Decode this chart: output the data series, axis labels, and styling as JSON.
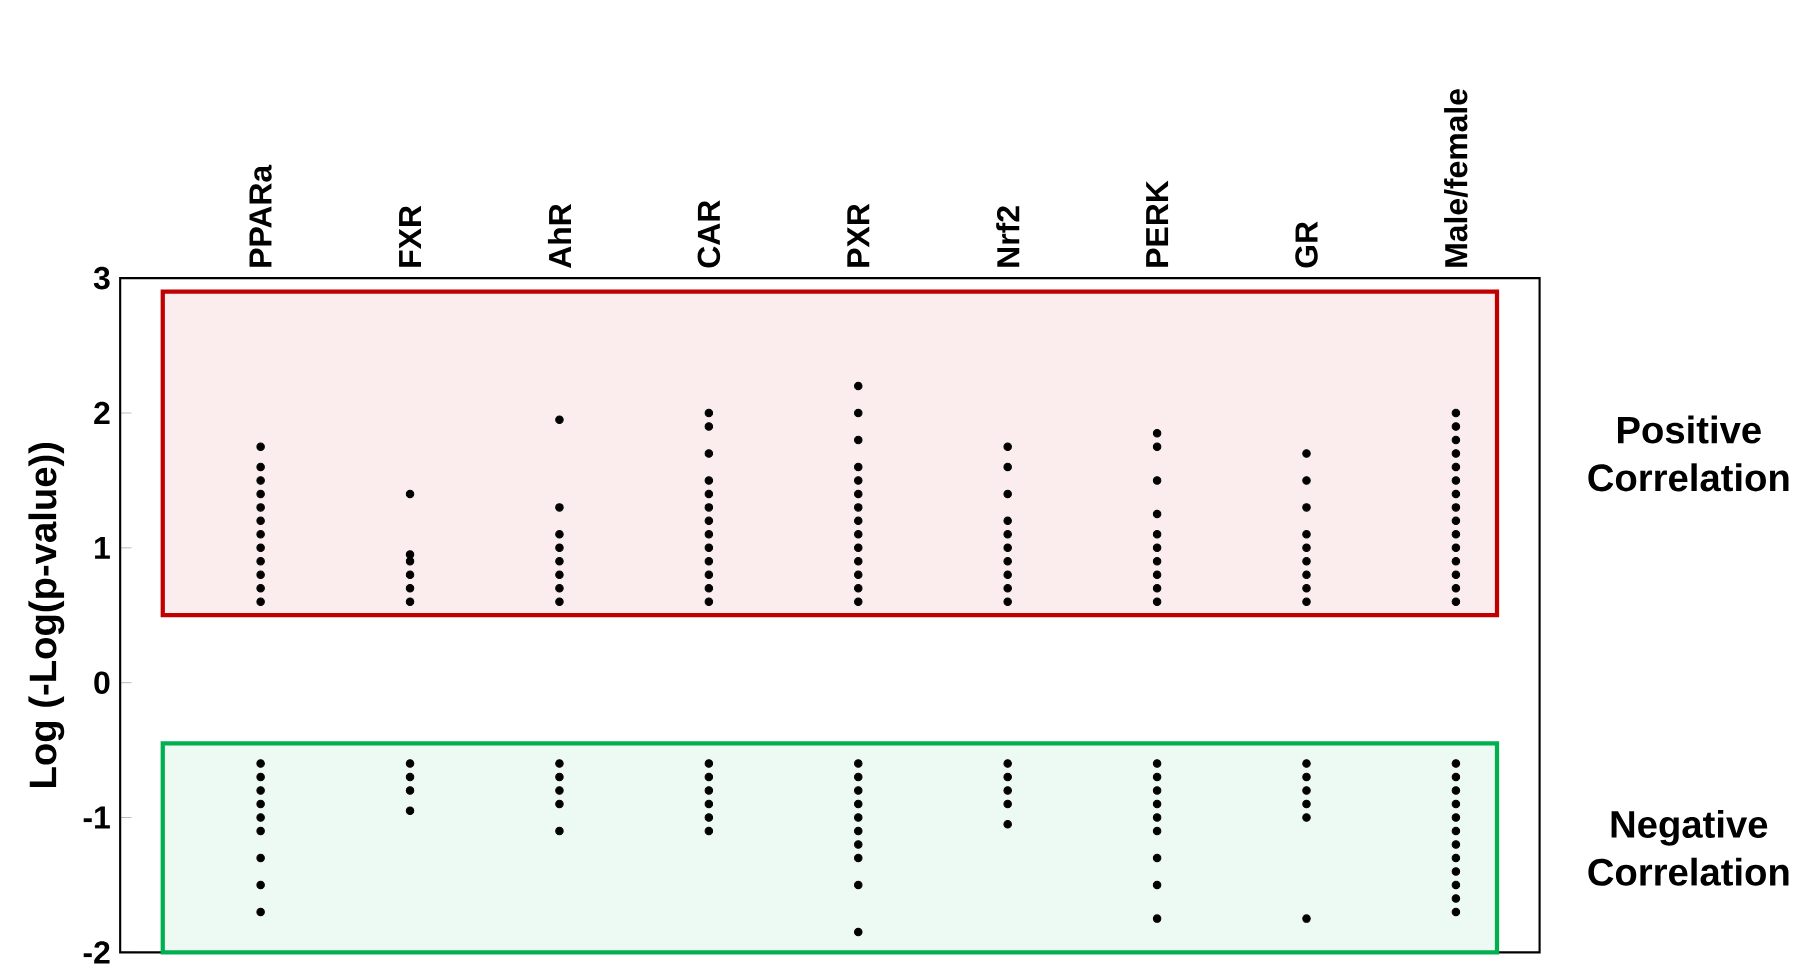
{
  "chart_data": {
    "type": "scatter",
    "ylabel": "Log (-Log(p-value))",
    "categories": [
      "PPARa",
      "FXR",
      "AhR",
      "CAR",
      "PXR",
      "Nrf2",
      "PERK",
      "GR",
      "Male/female"
    ],
    "ylim": [
      -2,
      3
    ],
    "yticks": [
      -2,
      -1,
      0,
      1,
      2,
      3
    ],
    "marker": "circle",
    "grid": false,
    "series": [
      {
        "color": "#000000",
        "x": [
          "PPARa",
          "PPARa",
          "PPARa",
          "PPARa",
          "PPARa",
          "PPARa",
          "PPARa",
          "PPARa",
          "PPARa",
          "PPARa",
          "PPARa",
          "PPARa",
          "PPARa",
          "PPARa",
          "PPARa",
          "PPARa",
          "PPARa",
          "PPARa",
          "PPARa",
          "PPARa",
          "PPARa"
        ],
        "values": [
          0.6,
          0.7,
          0.8,
          0.9,
          1.0,
          1.1,
          1.2,
          1.3,
          1.4,
          1.5,
          1.6,
          1.75,
          -0.6,
          -0.7,
          -0.8,
          -0.9,
          -1.0,
          -1.1,
          -1.3,
          -1.5,
          -1.7
        ]
      },
      {
        "color": "#000000",
        "x": [
          "FXR",
          "FXR",
          "FXR",
          "FXR",
          "FXR",
          "FXR",
          "FXR",
          "FXR",
          "FXR",
          "FXR"
        ],
        "values": [
          0.6,
          0.7,
          0.8,
          0.9,
          0.95,
          1.4,
          -0.6,
          -0.7,
          -0.8,
          -0.95
        ]
      },
      {
        "color": "#000000",
        "x": [
          "AhR",
          "AhR",
          "AhR",
          "AhR",
          "AhR",
          "AhR",
          "AhR",
          "AhR",
          "AhR",
          "AhR",
          "AhR",
          "AhR",
          "AhR"
        ],
        "values": [
          0.6,
          0.7,
          0.8,
          0.9,
          1.0,
          1.1,
          1.3,
          1.95,
          -0.6,
          -0.7,
          -0.8,
          -0.9,
          -1.1
        ]
      },
      {
        "color": "#000000",
        "x": [
          "CAR",
          "CAR",
          "CAR",
          "CAR",
          "CAR",
          "CAR",
          "CAR",
          "CAR",
          "CAR",
          "CAR",
          "CAR",
          "CAR",
          "CAR",
          "CAR",
          "CAR",
          "CAR",
          "CAR",
          "CAR",
          "CAR"
        ],
        "values": [
          0.6,
          0.7,
          0.8,
          0.9,
          1.0,
          1.1,
          1.2,
          1.3,
          1.4,
          1.5,
          1.7,
          1.9,
          2.0,
          -0.6,
          -0.7,
          -0.8,
          -0.9,
          -1.0,
          -1.1
        ]
      },
      {
        "color": "#000000",
        "x": [
          "PXR",
          "PXR",
          "PXR",
          "PXR",
          "PXR",
          "PXR",
          "PXR",
          "PXR",
          "PXR",
          "PXR",
          "PXR",
          "PXR",
          "PXR",
          "PXR",
          "PXR",
          "PXR",
          "PXR",
          "PXR",
          "PXR",
          "PXR",
          "PXR",
          "PXR",
          "PXR",
          "PXR"
        ],
        "values": [
          0.6,
          0.7,
          0.8,
          0.9,
          1.0,
          1.1,
          1.2,
          1.3,
          1.4,
          1.5,
          1.6,
          1.8,
          2.0,
          2.2,
          -0.6,
          -0.7,
          -0.8,
          -0.9,
          -1.0,
          -1.1,
          -1.2,
          -1.3,
          -1.5,
          -1.85
        ]
      },
      {
        "color": "#000000",
        "x": [
          "Nrf2",
          "Nrf2",
          "Nrf2",
          "Nrf2",
          "Nrf2",
          "Nrf2",
          "Nrf2",
          "Nrf2",
          "Nrf2",
          "Nrf2",
          "Nrf2",
          "Nrf2",
          "Nrf2",
          "Nrf2",
          "Nrf2"
        ],
        "values": [
          0.6,
          0.7,
          0.8,
          0.9,
          1.0,
          1.1,
          1.2,
          1.4,
          1.6,
          1.75,
          -0.6,
          -0.7,
          -0.8,
          -0.9,
          -1.05
        ]
      },
      {
        "color": "#000000",
        "x": [
          "PERK",
          "PERK",
          "PERK",
          "PERK",
          "PERK",
          "PERK",
          "PERK",
          "PERK",
          "PERK",
          "PERK",
          "PERK",
          "PERK",
          "PERK",
          "PERK",
          "PERK",
          "PERK",
          "PERK",
          "PERK",
          "PERK"
        ],
        "values": [
          0.6,
          0.7,
          0.8,
          0.9,
          1.0,
          1.1,
          1.25,
          1.5,
          1.75,
          1.85,
          -0.6,
          -0.7,
          -0.8,
          -0.9,
          -1.0,
          -1.1,
          -1.3,
          -1.5,
          -1.75
        ]
      },
      {
        "color": "#000000",
        "x": [
          "GR",
          "GR",
          "GR",
          "GR",
          "GR",
          "GR",
          "GR",
          "GR",
          "GR",
          "GR",
          "GR",
          "GR",
          "GR",
          "GR",
          "GR"
        ],
        "values": [
          0.6,
          0.7,
          0.8,
          0.9,
          1.0,
          1.1,
          1.3,
          1.5,
          1.7,
          -0.6,
          -0.7,
          -0.8,
          -0.9,
          -1.0,
          -1.75
        ]
      },
      {
        "color": "#000000",
        "x": [
          "Male/female",
          "Male/female",
          "Male/female",
          "Male/female",
          "Male/female",
          "Male/female",
          "Male/female",
          "Male/female",
          "Male/female",
          "Male/female",
          "Male/female",
          "Male/female",
          "Male/female",
          "Male/female",
          "Male/female",
          "Male/female",
          "Male/female",
          "Male/female",
          "Male/female",
          "Male/female",
          "Male/female",
          "Male/female",
          "Male/female",
          "Male/female",
          "Male/female",
          "Male/female",
          "Male/female"
        ],
        "values": [
          0.6,
          0.7,
          0.8,
          0.9,
          1.0,
          1.1,
          1.2,
          1.3,
          1.4,
          1.5,
          1.6,
          1.7,
          1.8,
          1.9,
          2.0,
          -0.6,
          -0.7,
          -0.8,
          -0.9,
          -1.0,
          -1.1,
          -1.2,
          -1.3,
          -1.4,
          -1.5,
          -1.6,
          -1.7
        ]
      }
    ],
    "bands": [
      {
        "axis": "y",
        "from": 0.5,
        "to": 2.9,
        "label": "Positive Correlation",
        "color": "#c00000"
      },
      {
        "axis": "y",
        "from": -2,
        "to": -0.45,
        "label": "Negative Correlation",
        "color": "#00b050"
      }
    ]
  }
}
